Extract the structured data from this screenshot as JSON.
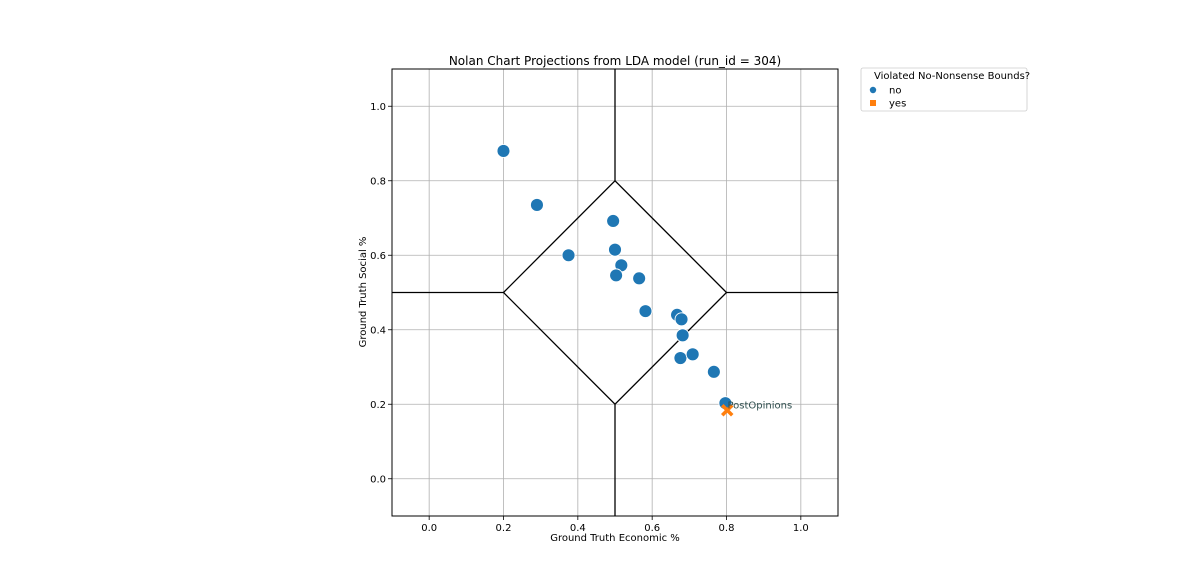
{
  "chart_data": {
    "type": "scatter",
    "title": "Nolan Chart Projections from LDA model (run_id = 304)",
    "xlabel": "Ground Truth Economic %",
    "ylabel": "Ground Truth Social %",
    "xlim": [
      -0.1,
      1.1
    ],
    "ylim": [
      -0.1,
      1.1
    ],
    "xticks": [
      "0.0",
      "0.2",
      "0.4",
      "0.6",
      "0.8",
      "1.0"
    ],
    "yticks": [
      "0.0",
      "0.2",
      "0.4",
      "0.6",
      "0.8",
      "1.0"
    ],
    "grid": true,
    "legend": {
      "title": "Violated No-Nonsense Bounds?",
      "placement": "outside-top-right",
      "entries": [
        {
          "label": "no",
          "color": "#1f77b4",
          "marker": "circle"
        },
        {
          "label": "yes",
          "color": "#ff7f0e",
          "marker": "x"
        }
      ]
    },
    "series": [
      {
        "name": "no",
        "color": "#1f77b4",
        "marker": "circle",
        "x": [
          0.2,
          0.29,
          0.375,
          0.495,
          0.5,
          0.517,
          0.503,
          0.565,
          0.582,
          0.667,
          0.679,
          0.682,
          0.676,
          0.709,
          0.766,
          0.797
        ],
        "y": [
          0.88,
          0.735,
          0.6,
          0.692,
          0.615,
          0.573,
          0.546,
          0.538,
          0.45,
          0.44,
          0.428,
          0.385,
          0.324,
          0.334,
          0.287,
          0.203
        ]
      },
      {
        "name": "yes",
        "color": "#ff7f0e",
        "marker": "x",
        "x": [
          0.802
        ],
        "y": [
          0.184
        ]
      }
    ],
    "annotations": [
      {
        "text": "PostOpinions",
        "x": 0.8,
        "y": 0.2
      }
    ],
    "nolan_lines": {
      "diamond": [
        [
          0.2,
          0.5
        ],
        [
          0.5,
          0.8
        ],
        [
          0.8,
          0.5
        ],
        [
          0.5,
          0.2
        ]
      ],
      "vertical_x": 0.5,
      "horizontal_y": 0.5
    }
  }
}
